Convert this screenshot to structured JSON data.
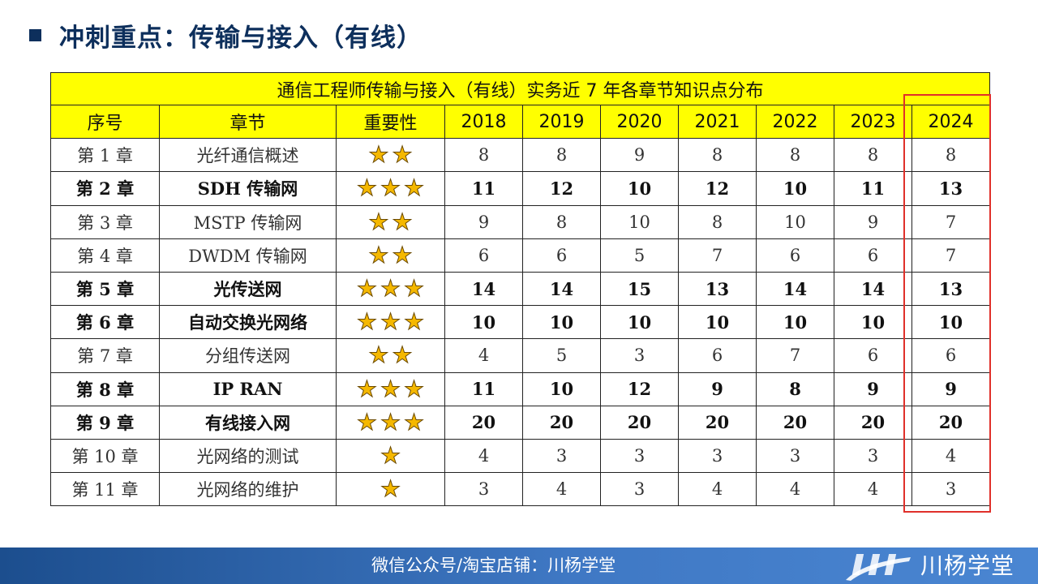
{
  "heading": "冲刺重点：传输与接入（有线）",
  "table": {
    "title": "通信工程师传输与接入（有线）实务近 7 年各章节知识点分布",
    "headers": [
      "序号",
      "章节",
      "重要性",
      "2018",
      "2019",
      "2020",
      "2021",
      "2022",
      "2023",
      "2024"
    ],
    "rows": [
      {
        "chapter": "第 1 章",
        "name": "光纤通信概述",
        "stars": 2,
        "bold": false,
        "values": [
          "8",
          "8",
          "9",
          "8",
          "8",
          "8",
          "8"
        ]
      },
      {
        "chapter": "第 2 章",
        "name": "SDH 传输网",
        "stars": 3,
        "bold": true,
        "values": [
          "11",
          "12",
          "10",
          "12",
          "10",
          "11",
          "13"
        ]
      },
      {
        "chapter": "第 3 章",
        "name": "MSTP 传输网",
        "stars": 2,
        "bold": false,
        "values": [
          "9",
          "8",
          "10",
          "8",
          "10",
          "9",
          "7"
        ]
      },
      {
        "chapter": "第 4 章",
        "name": "DWDM 传输网",
        "stars": 2,
        "bold": false,
        "values": [
          "6",
          "6",
          "5",
          "7",
          "6",
          "6",
          "7"
        ]
      },
      {
        "chapter": "第 5 章",
        "name": "光传送网",
        "stars": 3,
        "bold": true,
        "values": [
          "14",
          "14",
          "15",
          "13",
          "14",
          "14",
          "13"
        ]
      },
      {
        "chapter": "第 6 章",
        "name": "自动交换光网络",
        "stars": 3,
        "bold": true,
        "values": [
          "10",
          "10",
          "10",
          "10",
          "10",
          "10",
          "10"
        ]
      },
      {
        "chapter": "第 7 章",
        "name": "分组传送网",
        "stars": 2,
        "bold": false,
        "values": [
          "4",
          "5",
          "3",
          "6",
          "7",
          "6",
          "6"
        ]
      },
      {
        "chapter": "第 8 章",
        "name": "IP RAN",
        "stars": 3,
        "bold": true,
        "values": [
          "11",
          "10",
          "12",
          "9",
          "8",
          "9",
          "9"
        ]
      },
      {
        "chapter": "第 9 章",
        "name": "有线接入网",
        "stars": 3,
        "bold": true,
        "values": [
          "20",
          "20",
          "20",
          "20",
          "20",
          "20",
          "20"
        ]
      },
      {
        "chapter": "第 10 章",
        "name": "光网络的测试",
        "stars": 1,
        "bold": false,
        "values": [
          "4",
          "3",
          "3",
          "3",
          "3",
          "3",
          "4"
        ]
      },
      {
        "chapter": "第 11 章",
        "name": "光网络的维护",
        "stars": 1,
        "bold": false,
        "values": [
          "3",
          "4",
          "3",
          "4",
          "4",
          "4",
          "3"
        ]
      }
    ]
  },
  "highlight_color": "#e0302a",
  "star_icon": "star-icon",
  "footer": {
    "info": "微信公众号/淘宝店铺：川杨学堂",
    "brand": "川杨学堂"
  }
}
